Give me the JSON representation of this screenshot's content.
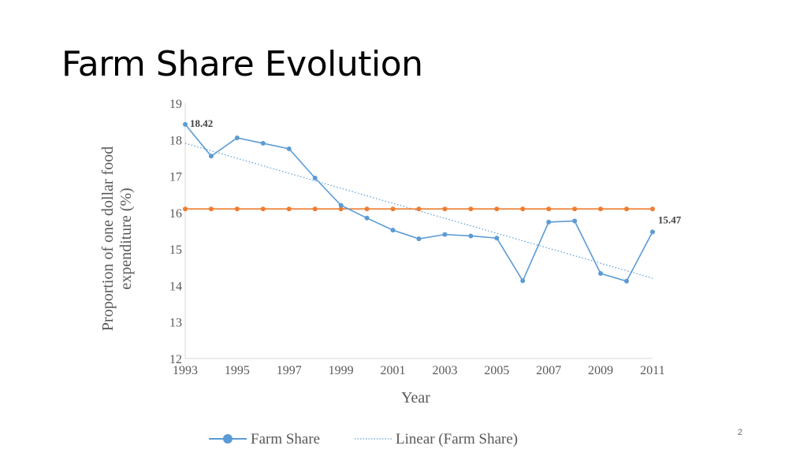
{
  "slide": {
    "title": "Farm Share Evolution",
    "page_number": "2"
  },
  "chart_data": {
    "type": "line",
    "title": "",
    "xlabel": "Year",
    "ylabel_lines": [
      "Proportion of one dollar food",
      "expenditure (%)"
    ],
    "xlim": [
      1993,
      2011
    ],
    "ylim": [
      12,
      19
    ],
    "x_ticks": [
      1993,
      1995,
      1997,
      1999,
      2001,
      2003,
      2005,
      2007,
      2009,
      2011
    ],
    "y_ticks": [
      12,
      13,
      14,
      15,
      16,
      17,
      18,
      19
    ],
    "x": [
      1993,
      1994,
      1995,
      1996,
      1997,
      1998,
      1999,
      2000,
      2001,
      2002,
      2003,
      2004,
      2005,
      2006,
      2007,
      2008,
      2009,
      2010,
      2011
    ],
    "series": [
      {
        "name": "Farm Share",
        "color": "#5b9bd5",
        "values": [
          18.42,
          17.55,
          18.05,
          17.9,
          17.75,
          16.95,
          16.2,
          15.85,
          15.52,
          15.28,
          15.4,
          15.36,
          15.3,
          14.13,
          15.74,
          15.77,
          14.33,
          14.12,
          15.47
        ]
      },
      {
        "color": "#ed7d31",
        "values": [
          16.1,
          16.1,
          16.1,
          16.1,
          16.1,
          16.1,
          16.1,
          16.1,
          16.1,
          16.1,
          16.1,
          16.1,
          16.1,
          16.1,
          16.1,
          16.1,
          16.1,
          16.1,
          16.1
        ]
      }
    ],
    "trendline": {
      "name": "Linear (Farm Share)",
      "of_series": "Farm Share",
      "style": "dotted",
      "color": "#5b9bd5",
      "start": 17.9,
      "end": 14.2
    },
    "data_labels": [
      {
        "x": 1993,
        "value": "18.42"
      },
      {
        "x": 2011,
        "value": "15.47"
      }
    ],
    "legend_position": "bottom",
    "grid": false
  }
}
